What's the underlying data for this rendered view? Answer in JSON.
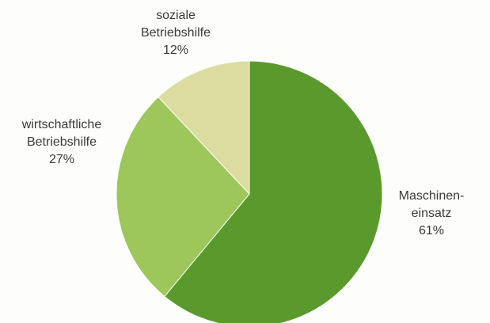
{
  "chart_data": {
    "type": "pie",
    "title": "",
    "slices": [
      {
        "label_lines": [
          "Maschinen-",
          "einsatz"
        ],
        "value": 61,
        "value_text": "61%",
        "color": "#5a9a2c"
      },
      {
        "label_lines": [
          "wirtschaftliche",
          "Betriebshilfe"
        ],
        "value": 27,
        "value_text": "27%",
        "color": "#9dc75a"
      },
      {
        "label_lines": [
          "soziale",
          "Betriebshilfe"
        ],
        "value": 12,
        "value_text": "12%",
        "color": "#dcdca0"
      }
    ],
    "start": "12 o'clock",
    "direction": "clockwise",
    "legend": "none"
  }
}
